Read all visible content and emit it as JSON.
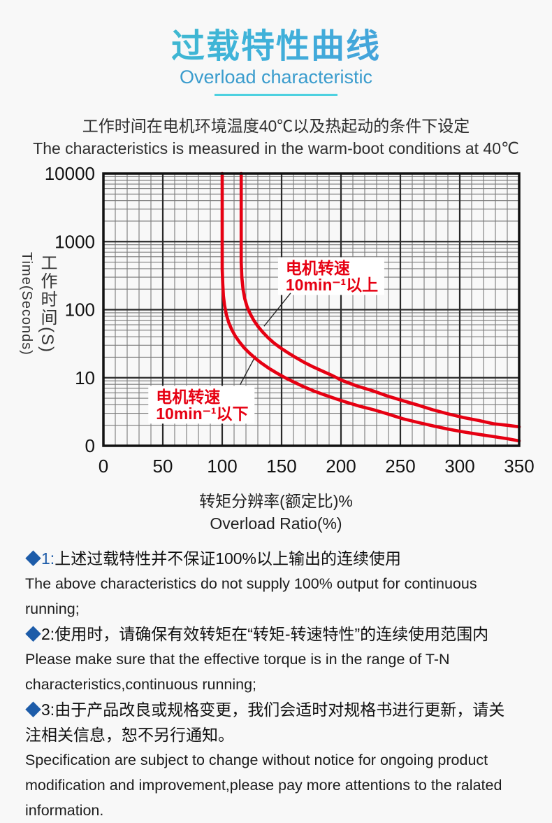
{
  "colors": {
    "accent_teal": "#3ec3bd",
    "accent_blue": "#4b8edd",
    "subtitle_blue": "#3a9ccd",
    "underline_cyan": "#4ed1e0",
    "bullet_blue": "#1d5ca9",
    "curve_red": "#e60012",
    "grid_major": "#2a2a2a",
    "grid_minor": "#7a7a7a"
  },
  "header": {
    "title_cn": "过载特性曲线",
    "title_en": "Overload characteristic"
  },
  "description": {
    "cn": "工作时间在电机环境温度40℃以及热起动的条件下设定",
    "en": "The characteristics is measured in the warm-boot conditions at 40℃"
  },
  "chart_data": {
    "type": "line",
    "title": "",
    "x_axis": {
      "label_cn": "转矩分辨率(额定比)%",
      "label_en": "Overload Ratio(%)",
      "min": 0,
      "max": 350,
      "major_tick_step": 50,
      "minor_tick_step": 10,
      "tick_labels": [
        "0",
        "50",
        "100",
        "150",
        "200",
        "250",
        "300",
        "350"
      ]
    },
    "y_axis": {
      "label_cn": "工作时间(S)",
      "label_en": "Time(Seconds)",
      "scale": "log",
      "min": 1,
      "max": 10000,
      "tick_values": [
        10000,
        1000,
        100,
        10,
        1
      ],
      "tick_labels": [
        "10000",
        "1000",
        "100",
        "10",
        "0"
      ]
    },
    "grid": "major-and-minor-both-axes",
    "legend_position": "none",
    "series": [
      {
        "name": "电机转速10min⁻¹以下",
        "color": "#e60012",
        "points": [
          [
            100,
            10000
          ],
          [
            100,
            400
          ],
          [
            100.5,
            240
          ],
          [
            101,
            160
          ],
          [
            102,
            115
          ],
          [
            103.5,
            85
          ],
          [
            105.5,
            65
          ],
          [
            108,
            51
          ],
          [
            111,
            41
          ],
          [
            114.5,
            33.5
          ],
          [
            118.5,
            27.5
          ],
          [
            123,
            23
          ],
          [
            128,
            19.2
          ],
          [
            133.5,
            16.2
          ],
          [
            139.5,
            13.7
          ],
          [
            146,
            11.7
          ],
          [
            153,
            10
          ],
          [
            160.5,
            8.6
          ],
          [
            168.5,
            7.4
          ],
          [
            177,
            6.4
          ],
          [
            186,
            5.6
          ],
          [
            195,
            4.95
          ],
          [
            204,
            4.4
          ],
          [
            215,
            3.85
          ],
          [
            227,
            3.4
          ],
          [
            239,
            2.95
          ],
          [
            252,
            2.5
          ],
          [
            265,
            2.2
          ],
          [
            278,
            1.95
          ],
          [
            290,
            1.76
          ],
          [
            303,
            1.6
          ],
          [
            316,
            1.47
          ],
          [
            329,
            1.36
          ],
          [
            340,
            1.27
          ],
          [
            350,
            1.18
          ]
        ]
      },
      {
        "name": "电机转速10min⁻¹以上",
        "color": "#e60012",
        "points": [
          [
            116,
            10000
          ],
          [
            116,
            500
          ],
          [
            116.5,
            300
          ],
          [
            117.5,
            200
          ],
          [
            119,
            145
          ],
          [
            121,
            110
          ],
          [
            123.5,
            88
          ],
          [
            126.5,
            70
          ],
          [
            130,
            57
          ],
          [
            134,
            47
          ],
          [
            138.5,
            39
          ],
          [
            143.5,
            32.5
          ],
          [
            149,
            27.5
          ],
          [
            155,
            23.5
          ],
          [
            161.5,
            20
          ],
          [
            168.5,
            17
          ],
          [
            176,
            14.6
          ],
          [
            184,
            12.6
          ],
          [
            192.5,
            10.8
          ],
          [
            201,
            9.1
          ],
          [
            213,
            7.6
          ],
          [
            227,
            6.4
          ],
          [
            239,
            5.4
          ],
          [
            252,
            4.6
          ],
          [
            265,
            3.95
          ],
          [
            278,
            3.35
          ],
          [
            290,
            2.95
          ],
          [
            303,
            2.6
          ],
          [
            316,
            2.35
          ],
          [
            329,
            2.1
          ],
          [
            340,
            2.0
          ],
          [
            350,
            1.9
          ]
        ]
      }
    ],
    "annotations": [
      {
        "lines": [
          "电机转速",
          "10min⁻¹以上"
        ],
        "anchor_x": 147,
        "anchor_t": 590,
        "pointer": [
          157.6,
          175,
          135.2,
          57
        ]
      },
      {
        "lines": [
          "电机转速",
          "10min⁻¹以下"
        ],
        "anchor_x": 37.8,
        "anchor_t": 7.6,
        "pointer": [
          115.1,
          7.9,
          128.1,
          21
        ]
      }
    ]
  },
  "notes": [
    {
      "marker": "◆",
      "num": "1:",
      "num_blue": true,
      "cn_lines": [
        "上述过载特性并不保证100%以上输出的连续使用"
      ],
      "en_lines": [
        "The above characteristics do not supply 100% output for continuous running;"
      ]
    },
    {
      "marker": "◆",
      "num": "2:",
      "num_blue": false,
      "cn_lines": [
        "使用时，请确保有效转矩在“转矩-转速特性”的连续使用范围内"
      ],
      "en_lines": [
        "Please make sure that the effective torque is in the range of T-N",
        "characteristics,continuous running;"
      ]
    },
    {
      "marker": "◆",
      "num": "3:",
      "num_blue": false,
      "cn_lines": [
        "由于产品改良或规格变更，我们会适时对规格书进行更新，请关",
        "注相关信息，恕不另行通知。"
      ],
      "en_lines": [
        "Specification are subject to change without notice for ongoing product",
        "modification and improvement,please pay more attentions to the ralated",
        "information."
      ]
    }
  ]
}
